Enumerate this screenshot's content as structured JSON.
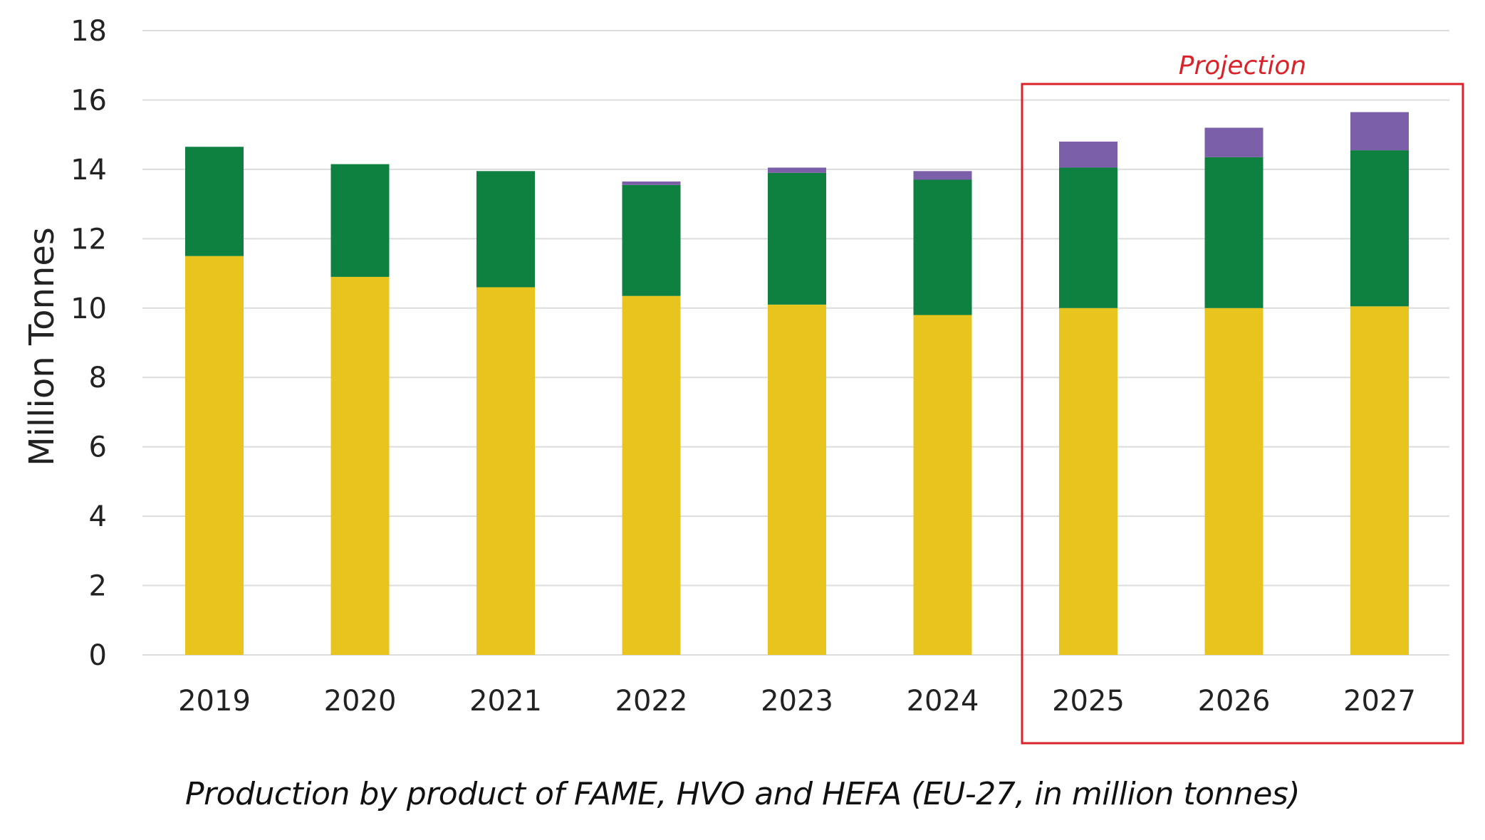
{
  "chart_data": {
    "type": "bar",
    "stacked": true,
    "title": "",
    "caption": "Production by product of FAME, HVO and HEFA (EU-27, in million tonnes)",
    "xlabel": "",
    "ylabel": "Million Tonnes",
    "ylim": [
      0,
      18
    ],
    "yticks": [
      "0",
      "2",
      "4",
      "6",
      "8",
      "10",
      "12",
      "14",
      "16",
      "18"
    ],
    "grid": true,
    "categories": [
      "2019",
      "2020",
      "2021",
      "2022",
      "2023",
      "2024",
      "2025",
      "2026",
      "2027"
    ],
    "series": [
      {
        "name": "FAME",
        "color": "#E8C41E",
        "values": [
          11.5,
          10.9,
          10.6,
          10.35,
          10.1,
          9.8,
          10.0,
          10.0,
          10.05
        ]
      },
      {
        "name": "HVO",
        "color": "#0E8141",
        "values": [
          3.15,
          3.25,
          3.35,
          3.2,
          3.8,
          3.9,
          4.05,
          4.35,
          4.5
        ]
      },
      {
        "name": "HEFA",
        "color": "#7B5FA8",
        "values": [
          0.0,
          0.0,
          0.0,
          0.1,
          0.15,
          0.25,
          0.75,
          0.85,
          1.1
        ]
      }
    ],
    "annotations": [
      {
        "label": "Projection",
        "color": "#D9222A",
        "categories": [
          "2025",
          "2026",
          "2027"
        ]
      }
    ]
  }
}
